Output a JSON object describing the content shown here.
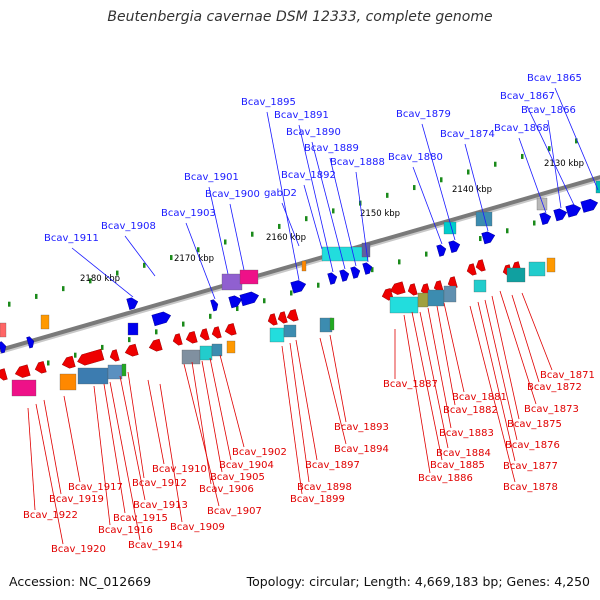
{
  "title": "Beutenbergia cavernae DSM 12333, complete genome",
  "footer": {
    "accession": "Accession: NC_012669",
    "topology": "Topology: circular; Length: 4,669,183 bp; Genes: 4,250"
  },
  "colors": {
    "forward_label": "#1a1aff",
    "reverse_label": "#e00000",
    "backbone": "#7a7a7a",
    "tick": "#1a8a1a"
  },
  "ruler": [
    "2130 kbp",
    "2140 kbp",
    "2150 kbp",
    "2160 kbp",
    "2170 kbp",
    "2180 kbp"
  ],
  "forward_genes": [
    "Bcav_1865",
    "Bcav_1867",
    "Bcav_1866",
    "Bcav_1868",
    "Bcav_1874",
    "Bcav_1879",
    "Bcav_1880",
    "Bcav_1888",
    "Bcav_1889",
    "Bcav_1890",
    "Bcav_1891",
    "Bcav_1892",
    "Bcav_1895",
    "gabD2",
    "Bcav_1900",
    "Bcav_1901",
    "Bcav_1903",
    "Bcav_1908",
    "Bcav_1911"
  ],
  "reverse_genes": [
    "Bcav_1871",
    "Bcav_1872",
    "Bcav_1873",
    "Bcav_1875",
    "Bcav_1876",
    "Bcav_1877",
    "Bcav_1878",
    "Bcav_1881",
    "Bcav_1882",
    "Bcav_1883",
    "Bcav_1884",
    "Bcav_1885",
    "Bcav_1886",
    "Bcav_1887",
    "Bcav_1893",
    "Bcav_1894",
    "Bcav_1897",
    "Bcav_1898",
    "Bcav_1899",
    "Bcav_1902",
    "Bcav_1904",
    "Bcav_1905",
    "Bcav_1906",
    "Bcav_1907",
    "Bcav_1909",
    "Bcav_1910",
    "Bcav_1912",
    "Bcav_1913",
    "Bcav_1914",
    "Bcav_1915",
    "Bcav_1916",
    "Bcav_1917",
    "Bcav_1919",
    "Bcav_1920",
    "Bcav_1922"
  ]
}
